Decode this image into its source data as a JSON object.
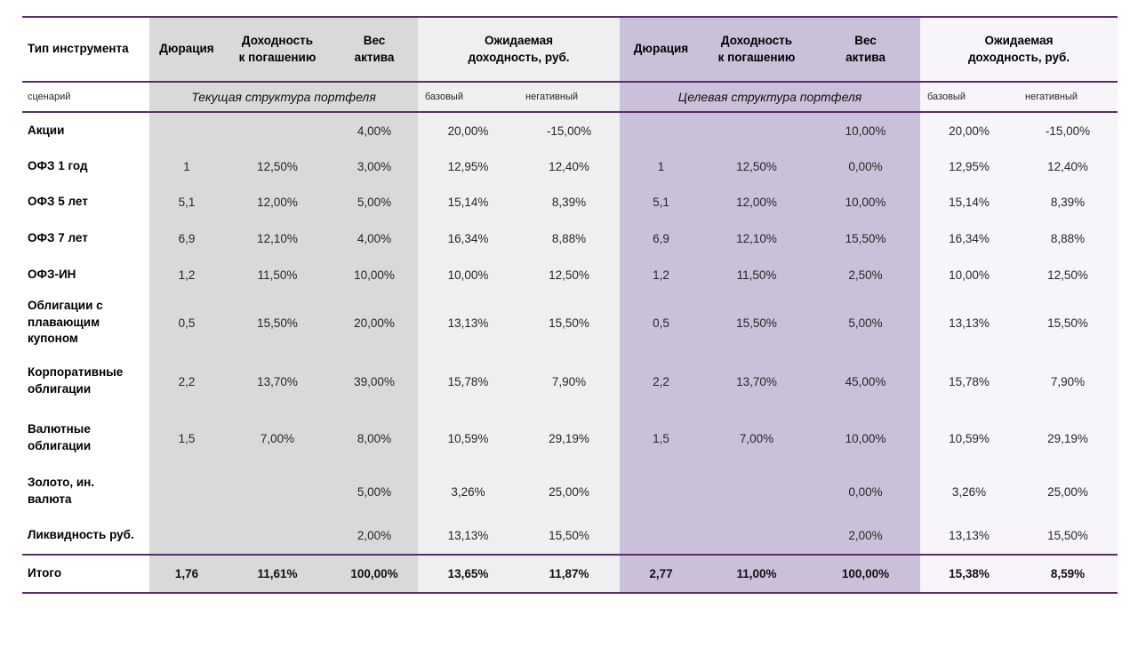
{
  "header": {
    "instrument_type": "Тип инструмента",
    "duration": "Дюрация",
    "ytm": "Доходность\nк погашению",
    "weight": "Вес\nактива",
    "expected_return": "Ожидаемая\nдоходность, руб."
  },
  "scenario": {
    "label": "сценарий",
    "current_title": "Текущая структура портфеля",
    "target_title": "Целевая структура портфеля",
    "base": "базовый",
    "negative": "негативный"
  },
  "rows": [
    {
      "name": "Акции",
      "current": [
        "",
        "",
        "4,00%",
        "20,00%",
        "-15,00%"
      ],
      "target": [
        "",
        "",
        "10,00%",
        "20,00%",
        "-15,00%"
      ]
    },
    {
      "name": "ОФЗ 1 год",
      "current": [
        "1",
        "12,50%",
        "3,00%",
        "12,95%",
        "12,40%"
      ],
      "target": [
        "1",
        "12,50%",
        "0,00%",
        "12,95%",
        "12,40%"
      ]
    },
    {
      "name": "ОФЗ 5 лет",
      "current": [
        "5,1",
        "12,00%",
        "5,00%",
        "15,14%",
        "8,39%"
      ],
      "target": [
        "5,1",
        "12,00%",
        "10,00%",
        "15,14%",
        "8,39%"
      ]
    },
    {
      "name": "ОФЗ 7 лет",
      "current": [
        "6,9",
        "12,10%",
        "4,00%",
        "16,34%",
        "8,88%"
      ],
      "target": [
        "6,9",
        "12,10%",
        "15,50%",
        "16,34%",
        "8,88%"
      ]
    },
    {
      "name": "ОФЗ-ИН",
      "current": [
        "1,2",
        "11,50%",
        "10,00%",
        "10,00%",
        "12,50%"
      ],
      "target": [
        "1,2",
        "11,50%",
        "2,50%",
        "10,00%",
        "12,50%"
      ]
    },
    {
      "name": "Облигации с\nплавающим\nкупоном",
      "current": [
        "0,5",
        "15,50%",
        "20,00%",
        "13,13%",
        "15,50%"
      ],
      "target": [
        "0,5",
        "15,50%",
        "5,00%",
        "13,13%",
        "15,50%"
      ]
    },
    {
      "name": "Корпоративные\nоблигации",
      "current": [
        "2,2",
        "13,70%",
        "39,00%",
        "15,78%",
        "7,90%"
      ],
      "target": [
        "2,2",
        "13,70%",
        "45,00%",
        "15,78%",
        "7,90%"
      ]
    },
    {
      "name": "Валютные\nоблигации",
      "current": [
        "1,5",
        "7,00%",
        "8,00%",
        "10,59%",
        "29,19%"
      ],
      "target": [
        "1,5",
        "7,00%",
        "10,00%",
        "10,59%",
        "29,19%"
      ]
    },
    {
      "name": "Золото, ин.\nвалюта",
      "current": [
        "",
        "",
        "5,00%",
        "3,26%",
        "25,00%"
      ],
      "target": [
        "",
        "",
        "0,00%",
        "3,26%",
        "25,00%"
      ]
    },
    {
      "name": "Ликвидность руб.",
      "current": [
        "",
        "",
        "2,00%",
        "13,13%",
        "15,50%"
      ],
      "target": [
        "",
        "",
        "2,00%",
        "13,13%",
        "15,50%"
      ]
    }
  ],
  "total": {
    "name": "Итого",
    "current": [
      "1,76",
      "11,61%",
      "100,00%",
      "13,65%",
      "11,87%"
    ],
    "target": [
      "2,77",
      "11,00%",
      "100,00%",
      "15,38%",
      "8,59%"
    ]
  },
  "colors": {
    "border_purple": "#5b2d66",
    "band_gray": "#d9d9d9",
    "band_lightgray": "#efefef",
    "band_purple": "#cbc0da",
    "band_lightpurple": "#f7f5f9"
  }
}
